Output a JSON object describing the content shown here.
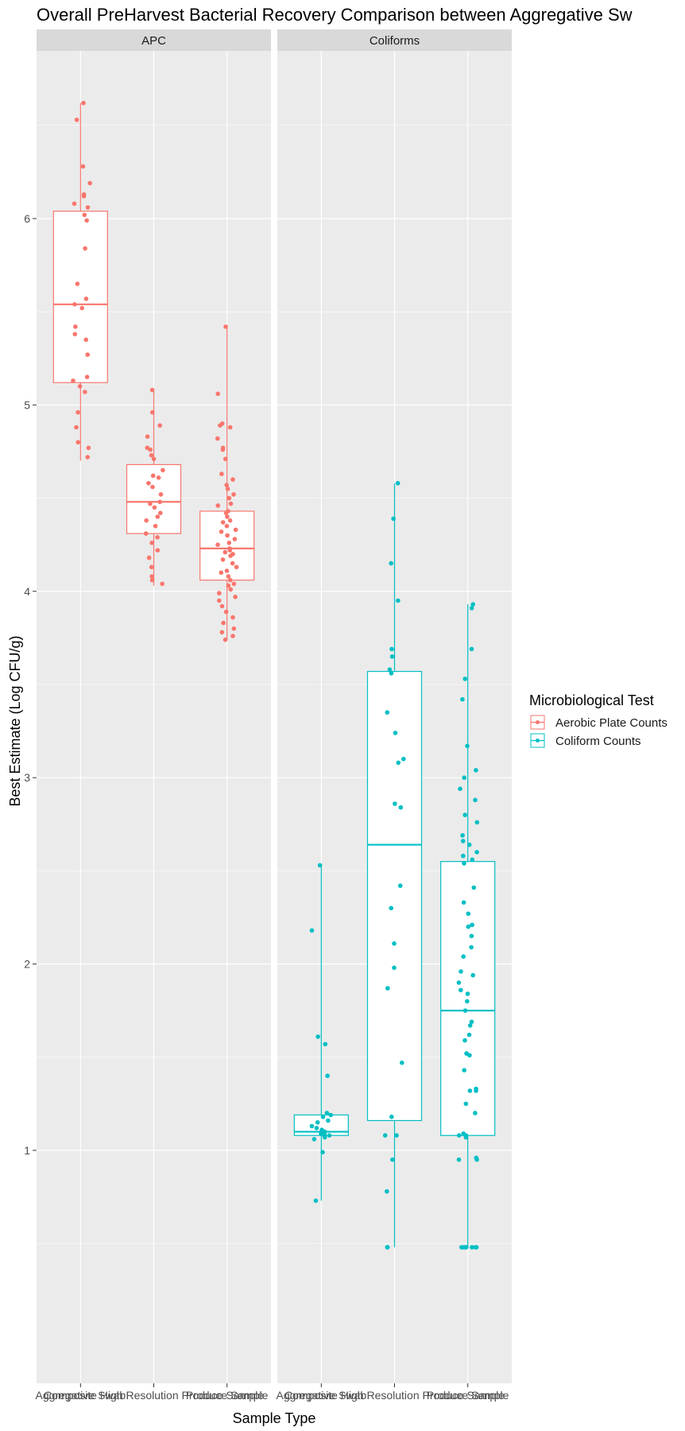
{
  "chart_data": {
    "type": "box",
    "title": "Overall PreHarvest Bacterial Recovery Comparison between Aggregative Sw",
    "xlabel": "Sample Type",
    "ylabel": "Best Estimate (Log CFU/g)",
    "ylim": [
      -0.25,
      6.9
    ],
    "yticks": [
      1,
      2,
      3,
      4,
      5,
      6
    ],
    "categories": [
      "Aggregative Swab",
      "Composite High Resolution Produce Sample",
      "Produce Sample"
    ],
    "legend": {
      "title": "Microbiological Test",
      "position": "right",
      "entries": [
        {
          "label": "Aerobic Plate Counts",
          "color": "#F8766D"
        },
        {
          "label": "Coliform Counts",
          "color": "#00BFC4"
        }
      ]
    },
    "grid": true,
    "panels": [
      {
        "strip": "APC",
        "color": "#F8766D",
        "boxes": [
          {
            "category": "Aggregative Swab",
            "lower": 4.7,
            "q1": 5.12,
            "median": 5.54,
            "q3": 6.04,
            "upper": 6.62,
            "points": [
              6.62,
              6.53,
              6.28,
              6.19,
              6.13,
              6.12,
              6.08,
              6.06,
              6.02,
              5.99,
              5.84,
              5.65,
              5.57,
              5.54,
              5.52,
              5.42,
              5.38,
              5.35,
              5.27,
              5.15,
              5.13,
              5.1,
              5.07,
              4.96,
              4.88,
              4.8,
              4.77,
              4.72
            ]
          },
          {
            "category": "Composite High Resolution Produce Sample",
            "lower": 4.03,
            "q1": 4.31,
            "median": 4.48,
            "q3": 4.68,
            "upper": 5.08,
            "points": [
              5.08,
              4.96,
              4.89,
              4.83,
              4.77,
              4.76,
              4.73,
              4.71,
              4.65,
              4.62,
              4.61,
              4.58,
              4.56,
              4.52,
              4.48,
              4.47,
              4.45,
              4.42,
              4.4,
              4.38,
              4.35,
              4.31,
              4.29,
              4.26,
              4.22,
              4.18,
              4.13,
              4.08,
              4.06,
              4.04
            ]
          },
          {
            "category": "Produce Sample",
            "lower": 3.74,
            "q1": 4.06,
            "median": 4.23,
            "q3": 4.43,
            "upper": 5.42,
            "points": [
              5.42,
              5.06,
              4.9,
              4.89,
              4.88,
              4.82,
              4.77,
              4.76,
              4.71,
              4.63,
              4.6,
              4.57,
              4.55,
              4.52,
              4.5,
              4.47,
              4.46,
              4.43,
              4.42,
              4.4,
              4.38,
              4.37,
              4.35,
              4.33,
              4.32,
              4.3,
              4.28,
              4.26,
              4.25,
              4.23,
              4.22,
              4.21,
              4.2,
              4.19,
              4.17,
              4.15,
              4.13,
              4.11,
              4.1,
              4.08,
              4.06,
              4.04,
              4.03,
              4.01,
              3.99,
              3.97,
              3.95,
              3.92,
              3.89,
              3.86,
              3.83,
              3.8,
              3.78,
              3.76,
              3.74
            ]
          }
        ]
      },
      {
        "strip": "Coliforms",
        "color": "#00BFC4",
        "boxes": [
          {
            "category": "Aggregative Swab",
            "lower": 0.73,
            "q1": 1.08,
            "median": 1.1,
            "q3": 1.19,
            "upper": 2.53,
            "points": [
              2.53,
              2.18,
              1.61,
              1.57,
              1.4,
              1.2,
              1.19,
              1.18,
              1.16,
              1.15,
              1.13,
              1.12,
              1.11,
              1.1,
              1.1,
              1.09,
              1.09,
              1.08,
              1.08,
              1.07,
              1.06,
              0.99,
              0.73
            ]
          },
          {
            "category": "Composite High Resolution Produce Sample",
            "lower": 0.48,
            "q1": 1.16,
            "median": 2.64,
            "q3": 3.57,
            "upper": 4.58,
            "points": [
              4.58,
              4.39,
              4.15,
              3.95,
              3.69,
              3.65,
              3.58,
              3.56,
              3.35,
              3.24,
              3.1,
              3.08,
              2.86,
              2.84,
              2.42,
              2.3,
              2.11,
              1.98,
              1.87,
              1.47,
              1.18,
              1.08,
              1.08,
              0.95,
              0.78,
              0.48,
              0.48,
              0.48
            ]
          },
          {
            "category": "Produce Sample",
            "lower": 0.48,
            "q1": 1.08,
            "median": 1.75,
            "q3": 2.55,
            "upper": 3.93,
            "points": [
              3.93,
              3.91,
              3.69,
              3.53,
              3.42,
              3.17,
              3.04,
              3.0,
              2.94,
              2.88,
              2.8,
              2.76,
              2.69,
              2.66,
              2.64,
              2.6,
              2.58,
              2.56,
              2.54,
              2.41,
              2.33,
              2.27,
              2.21,
              2.2,
              2.15,
              2.09,
              2.04,
              1.96,
              1.94,
              1.9,
              1.86,
              1.84,
              1.8,
              1.75,
              1.69,
              1.67,
              1.62,
              1.59,
              1.52,
              1.52,
              1.51,
              1.43,
              1.33,
              1.32,
              1.32,
              1.25,
              1.2,
              1.09,
              1.08,
              1.08,
              1.07,
              0.96,
              0.95,
              0.95,
              0.48,
              0.48,
              0.48,
              0.48,
              0.48,
              0.48,
              0.48
            ]
          }
        ]
      }
    ]
  }
}
